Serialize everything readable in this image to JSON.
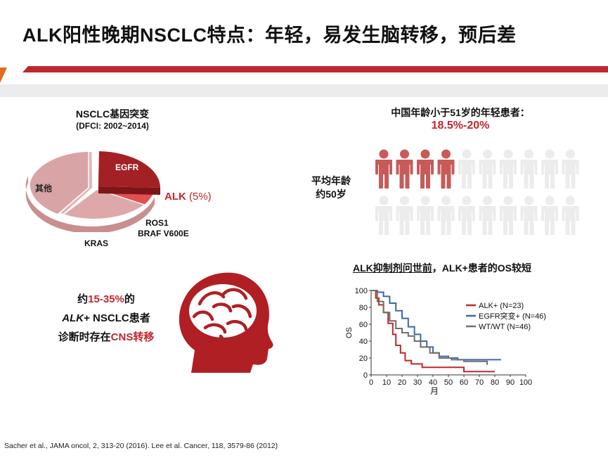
{
  "title": "ALK阳性晚期NSCLC特点：年轻，易发生脑转移，预后差",
  "colors": {
    "accent_red": "#c0272d",
    "dark_red": "#9e1b1f",
    "banner_grey": "#e7e7e7",
    "light_pink": "#d9a4a6"
  },
  "pie": {
    "title": "NSCLC基因突变",
    "subtitle": "(DFCI: 2002~2014)",
    "labels": {
      "egfr": "EGFR",
      "other": "其他",
      "alk_name": "ALK",
      "alk_pct": " (5%)",
      "ros1": "ROS1",
      "braf": "BRAF V600E",
      "kras": "KRAS"
    }
  },
  "age": {
    "headline": "中国年龄小于51岁的年轻患者：",
    "range": "18.5%-20%",
    "avg_line1": "平均年龄",
    "avg_line2": "约50岁",
    "figure_total": 20,
    "figure_highlight": 4,
    "figure_icon": "person-icon"
  },
  "brain": {
    "line1_prefix": "约",
    "line1_pct": "15-35%",
    "line1_suffix": "的",
    "line2_alk": "ALK",
    "line2_rest": "+ NSCLC患者",
    "line3_prefix": "诊断时存在",
    "line3_red": "CNS转移",
    "icon": "head-brain-icon"
  },
  "os_chart": {
    "title_underlined": "ALK抑制剂问世前",
    "title_rest": "，ALK+患者的OS较短"
  },
  "chart_data": {
    "type": "line",
    "subtype": "kaplan-meier step",
    "xlabel": "月",
    "ylabel": "OS",
    "xlim": [
      0,
      100
    ],
    "ylim": [
      0,
      100
    ],
    "xticks": [
      0,
      10,
      20,
      30,
      40,
      50,
      60,
      70,
      80,
      90,
      100
    ],
    "yticks": [
      0,
      20,
      40,
      60,
      80,
      100
    ],
    "legend_position": "top-right",
    "series": [
      {
        "name": "ALK+ (N=23)",
        "color": "#c0272d",
        "x": [
          0,
          3,
          5,
          8,
          11,
          14,
          16,
          19,
          22,
          26,
          33,
          40,
          60,
          80
        ],
        "y": [
          100,
          91,
          83,
          74,
          61,
          48,
          35,
          26,
          17,
          13,
          9,
          9,
          4,
          4
        ]
      },
      {
        "name": "EGFR突变+ (N=46)",
        "color": "#3a6aa6",
        "x": [
          0,
          4,
          8,
          12,
          16,
          20,
          24,
          28,
          32,
          36,
          40,
          44,
          50,
          56,
          84
        ],
        "y": [
          100,
          98,
          93,
          85,
          76,
          67,
          57,
          48,
          40,
          33,
          26,
          22,
          20,
          18,
          18
        ]
      },
      {
        "name": "WT/WT (N=46)",
        "color": "#6e6e6e",
        "x": [
          0,
          4,
          8,
          12,
          16,
          20,
          24,
          28,
          32,
          38,
          44,
          52,
          60,
          75
        ],
        "y": [
          100,
          87,
          74,
          64,
          55,
          50,
          46,
          40,
          33,
          26,
          20,
          18,
          16,
          12
        ]
      }
    ]
  },
  "citation": "Sacher et al., JAMA oncol, 2, 313-20 (2016).  Lee et al. Cancer, 118, 3579-86 (2012)"
}
